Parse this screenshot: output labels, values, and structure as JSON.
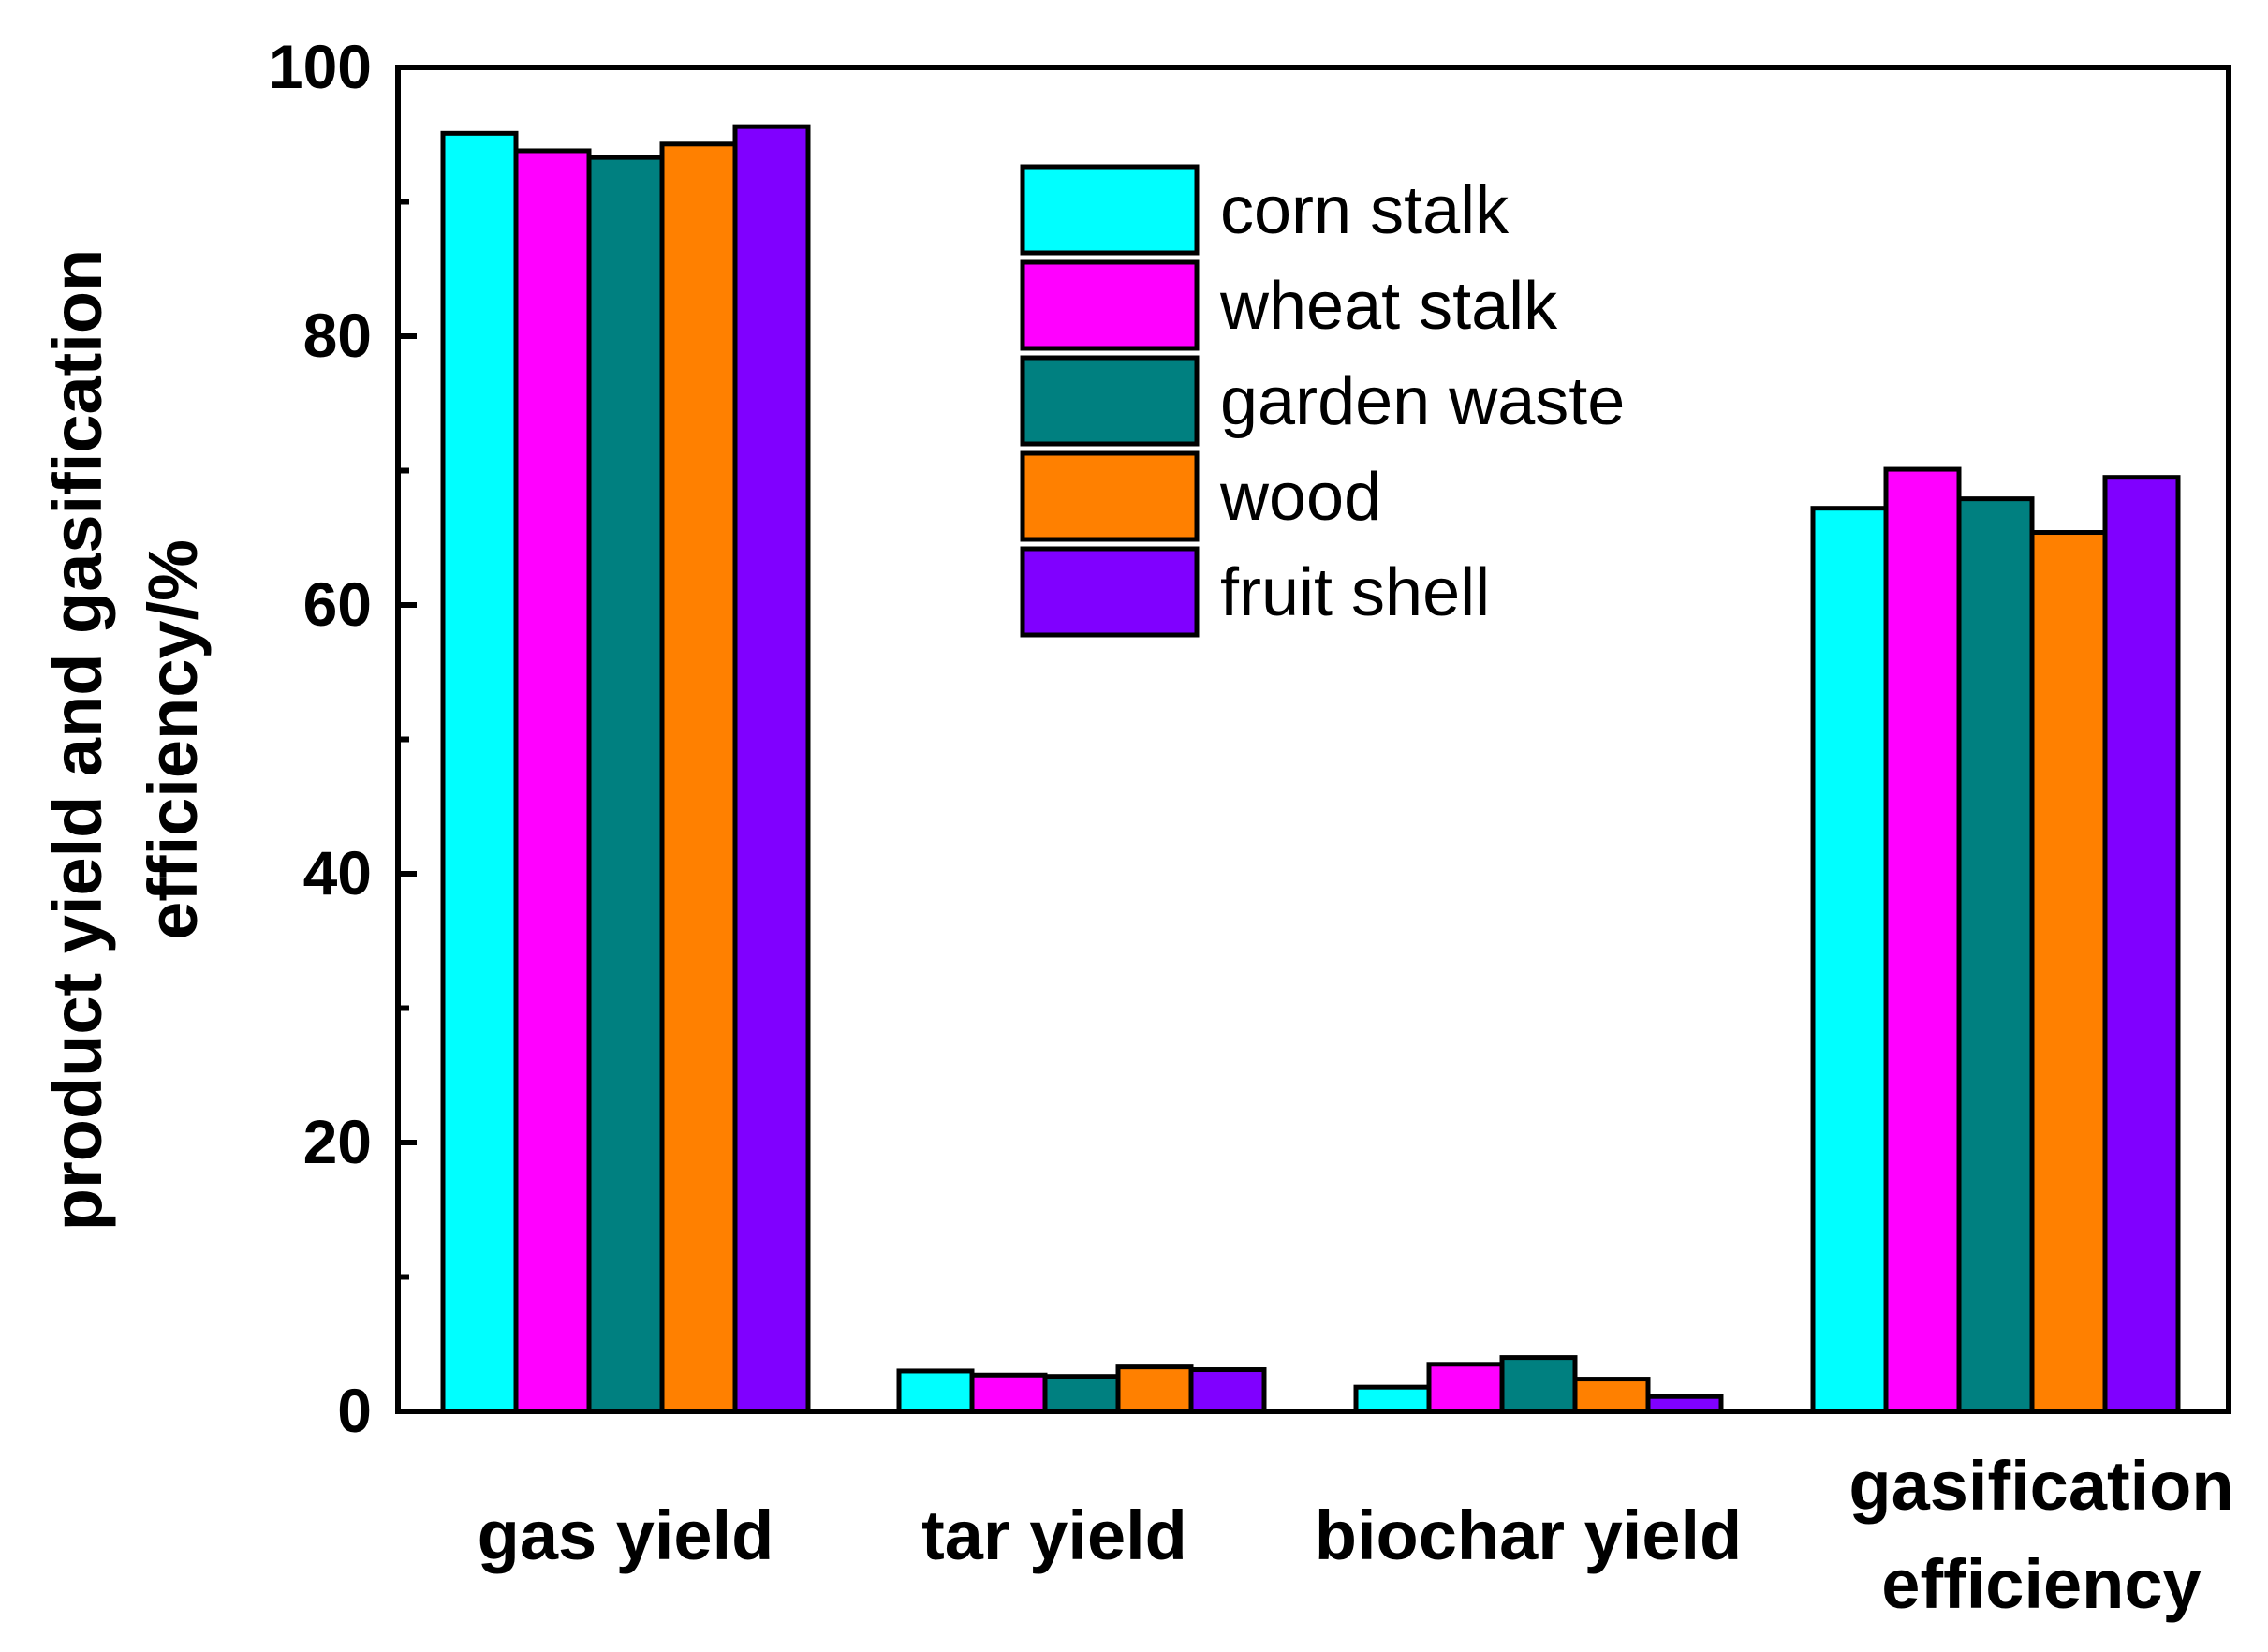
{
  "chart_data": {
    "type": "bar",
    "title": "",
    "xlabel": "",
    "ylabel_lines": [
      "product yield and gasification",
      "efficiency/%"
    ],
    "ylim": [
      0,
      100
    ],
    "yticks": [
      "0",
      "20",
      "40",
      "60",
      "80",
      "100"
    ],
    "categories": [
      [
        "gas yield"
      ],
      [
        "tar yield"
      ],
      [
        "biochar yield"
      ],
      [
        "gasification",
        "efficiency"
      ]
    ],
    "legend_position": "top-center",
    "series": [
      {
        "name": "corn stalk",
        "color": "#00FFFF",
        "values": [
          95.1,
          3.0,
          1.8,
          67.2
        ]
      },
      {
        "name": "wheat stalk",
        "color": "#FF00FF",
        "values": [
          93.8,
          2.7,
          3.5,
          70.1
        ]
      },
      {
        "name": "garden waste",
        "color": "#008080",
        "values": [
          93.3,
          2.6,
          4.0,
          67.9
        ]
      },
      {
        "name": "wood",
        "color": "#FF8000",
        "values": [
          94.3,
          3.3,
          2.4,
          65.4
        ]
      },
      {
        "name": "fruit shell",
        "color": "#8000FF",
        "values": [
          95.6,
          3.1,
          1.1,
          69.5
        ]
      }
    ]
  }
}
